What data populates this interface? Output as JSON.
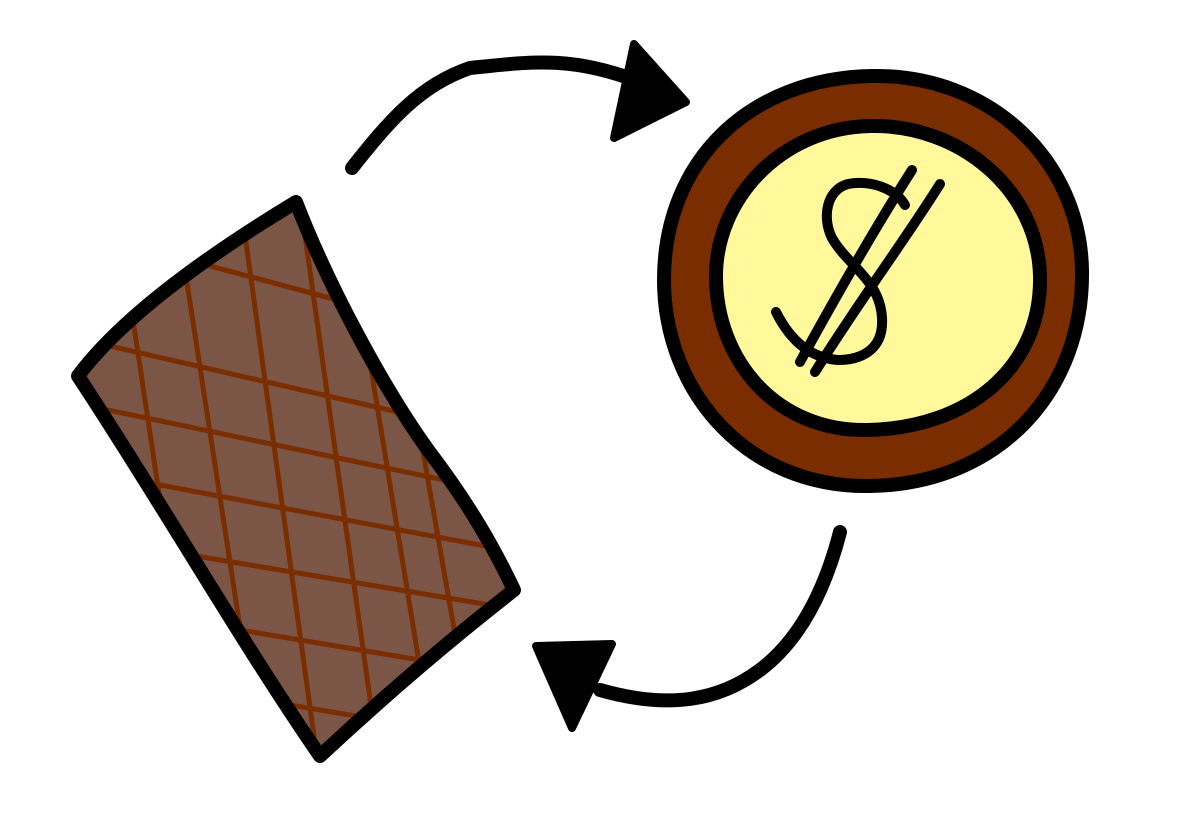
{
  "illustration": {
    "items": [
      {
        "name": "chocolate-bar",
        "icon": "chocolate-bar-icon"
      },
      {
        "name": "coin",
        "icon": "dollar-coin-icon",
        "symbol": "$"
      }
    ],
    "arrows": [
      {
        "name": "arrow-bar-to-coin",
        "icon": "curved-arrow-icon"
      },
      {
        "name": "arrow-coin-to-bar",
        "icon": "curved-arrow-icon"
      }
    ]
  },
  "colors": {
    "background": "#ffffff",
    "outline": "#000000",
    "chocolate_fill": "#7b5646",
    "chocolate_grid": "#7a2e00",
    "coin_rim": "#7a2e00",
    "coin_face": "#fff99c"
  }
}
